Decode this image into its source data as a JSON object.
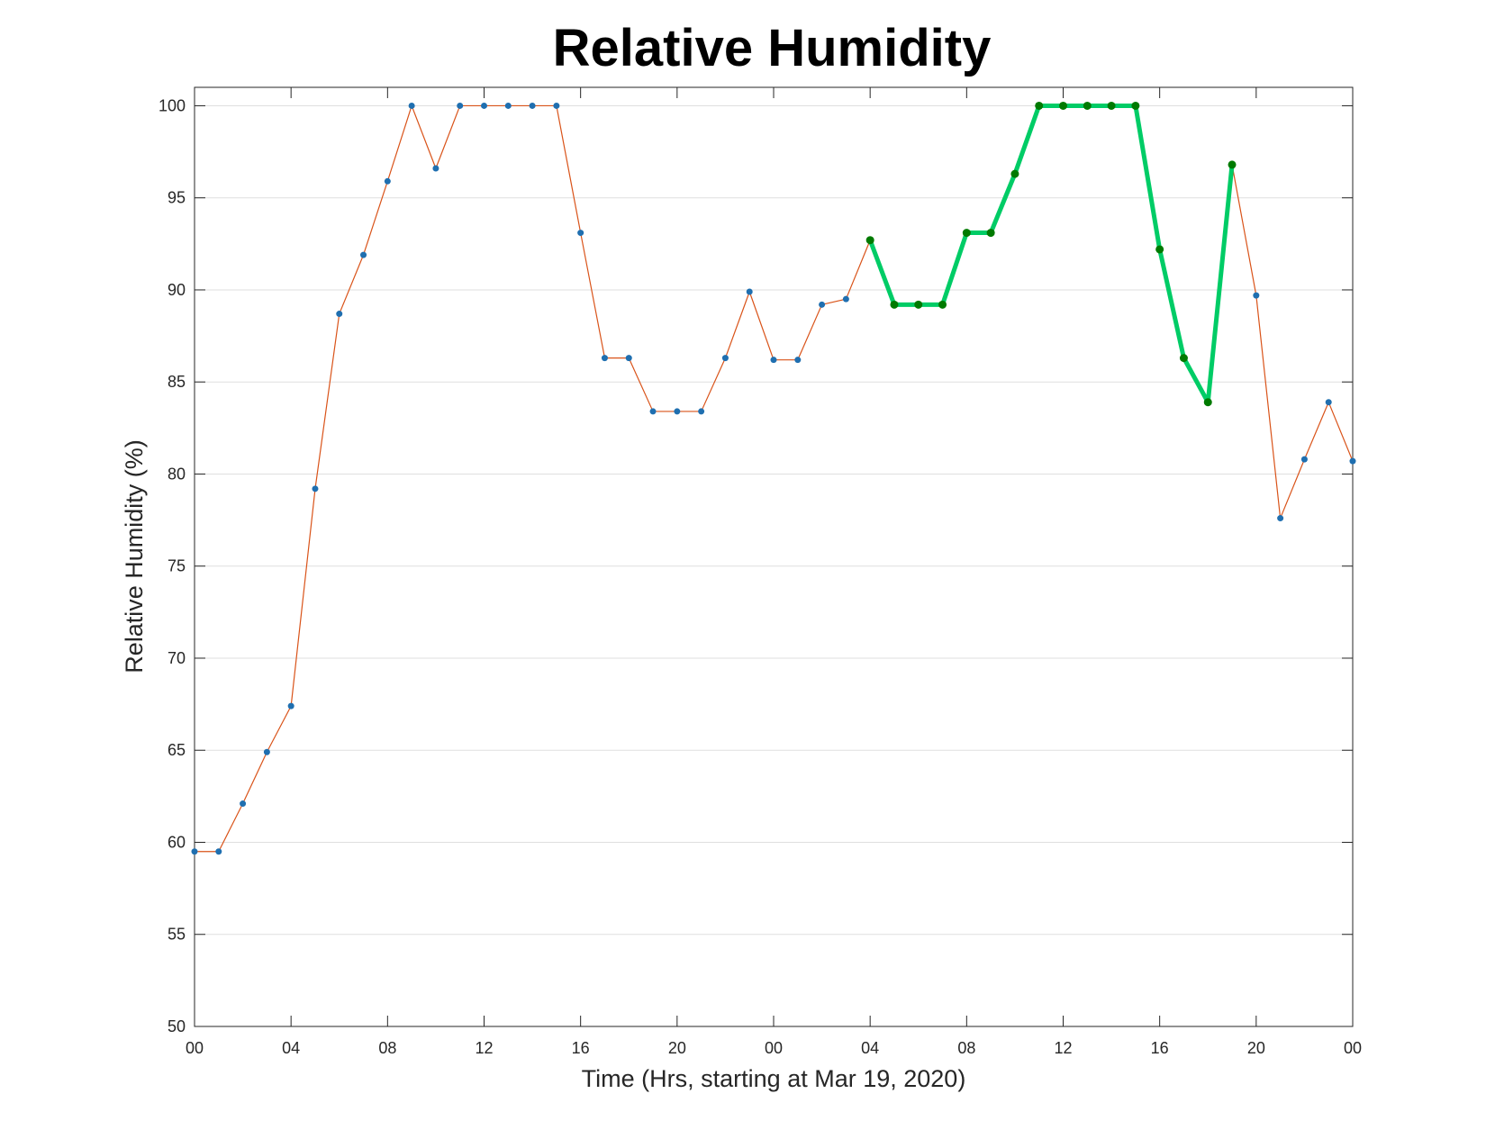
{
  "chart_data": {
    "type": "line",
    "title": "Relative Humidity",
    "xlabel": "Time (Hrs, starting at Mar 19, 2020)",
    "ylabel": "Relative Humidity (%)",
    "x_unit": "hours since Mar 19, 2020 00:00",
    "xlim": [
      0,
      48
    ],
    "ylim": [
      50,
      101
    ],
    "x_ticks": [
      0,
      4,
      8,
      12,
      16,
      20,
      24,
      28,
      32,
      36,
      40,
      44,
      48
    ],
    "x_tick_labels": [
      "00",
      "04",
      "08",
      "12",
      "16",
      "20",
      "00",
      "04",
      "08",
      "12",
      "16",
      "20",
      "00"
    ],
    "y_ticks": [
      50,
      55,
      60,
      65,
      70,
      75,
      80,
      85,
      90,
      95,
      100
    ],
    "y_tick_labels": [
      "50",
      "55",
      "60",
      "65",
      "70",
      "75",
      "80",
      "85",
      "90",
      "95",
      "100"
    ],
    "grid": "horizontal",
    "colors": {
      "line": "#d95319",
      "marker": "#1f6fb0",
      "highlight_line": "#00cc66",
      "highlight_marker": "#007a00",
      "grid": "#dfdfdf",
      "axis": "#262626"
    },
    "series": [
      {
        "x": [
          0,
          1,
          2,
          3,
          4,
          5,
          6,
          7,
          8,
          9,
          10,
          11,
          12,
          13,
          14,
          15,
          16,
          17,
          18,
          19,
          20,
          21,
          22,
          23,
          24,
          25,
          26,
          27,
          28,
          29,
          30,
          31,
          32,
          33,
          34,
          35,
          36,
          37,
          38,
          39,
          40,
          41,
          42,
          43,
          44,
          45,
          46,
          47,
          48
        ],
        "values": [
          59.5,
          59.5,
          62.1,
          64.9,
          67.4,
          79.2,
          88.7,
          91.9,
          95.9,
          100,
          96.6,
          100,
          100,
          100,
          100,
          100,
          93.1,
          86.3,
          86.3,
          83.4,
          83.4,
          83.4,
          86.3,
          89.9,
          86.2,
          86.2,
          89.2,
          89.5,
          92.7,
          89.2,
          89.2,
          89.2,
          93.1,
          93.1,
          96.3,
          100,
          100,
          100,
          100,
          100,
          92.2,
          86.3,
          83.9,
          96.8,
          89.7,
          77.6,
          80.8,
          83.9,
          80.7
        ]
      },
      {
        "highlight": true,
        "x": [
          28,
          29,
          30,
          31,
          32,
          33,
          34,
          35,
          36,
          37,
          38,
          39,
          40,
          41,
          42,
          43
        ],
        "values": [
          92.7,
          89.2,
          89.2,
          89.2,
          93.1,
          93.1,
          96.3,
          100,
          100,
          100,
          100,
          100,
          92.2,
          86.3,
          83.9,
          96.8
        ]
      }
    ]
  }
}
